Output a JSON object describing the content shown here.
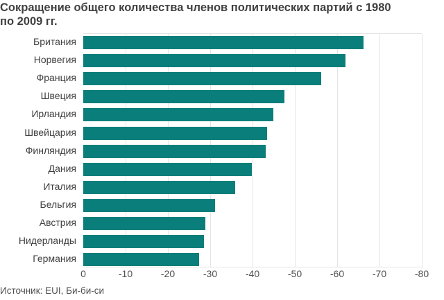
{
  "chart_data": {
    "type": "bar",
    "orientation": "horizontal",
    "title": "Сокращение общего количества членов политических партий с 1980 по 2009 гг.",
    "xlabel": "",
    "ylabel": "",
    "categories": [
      "Британия",
      "Норвегия",
      "Франция",
      "Швеция",
      "Ирландия",
      "Швейцария",
      "Финляндия",
      "Дания",
      "Италия",
      "Бельгия",
      "Австрия",
      "Нидерланды",
      "Германия"
    ],
    "values": [
      -66.2,
      -62.0,
      -56.2,
      -47.5,
      -44.9,
      -43.4,
      -43.1,
      -39.8,
      -35.9,
      -31.1,
      -28.9,
      -28.5,
      -27.4
    ],
    "xlim": [
      0,
      -80
    ],
    "xticks": [
      "0",
      "-10",
      "-20",
      "-30",
      "-40",
      "-50",
      "-60",
      "-70",
      "-80"
    ],
    "grid": true,
    "bar_color": "#0a7e7a",
    "source": "Источник: EUI, Би-би-си"
  },
  "title_line1": "Сокращение общего количества членов политических партий с 1980",
  "title_line2": "по 2009 гг.",
  "source": "Источник: EUI, Би-би-си"
}
